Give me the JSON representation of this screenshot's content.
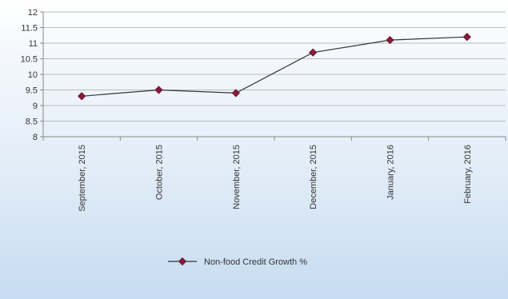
{
  "chart_data": {
    "type": "line",
    "categories": [
      "September, 2015",
      "October, 2015",
      "November, 2015",
      "December, 2015",
      "January, 2016",
      "February, 2016"
    ],
    "series": [
      {
        "name": "Non-food Credit Growth %",
        "values": [
          9.3,
          9.5,
          9.4,
          10.7,
          11.1,
          11.2
        ],
        "color": "#8b1a3a"
      }
    ],
    "yticks": [
      "8",
      "8.5",
      "9",
      "9.5",
      "10",
      "10.5",
      "11",
      "11.5",
      "12"
    ],
    "ylim": [
      8,
      12
    ],
    "grid": true,
    "legend_position": "bottom",
    "title": "",
    "xlabel": "",
    "ylabel": "",
    "line_color": "#333333",
    "grid_color": "#bcbcbc"
  }
}
